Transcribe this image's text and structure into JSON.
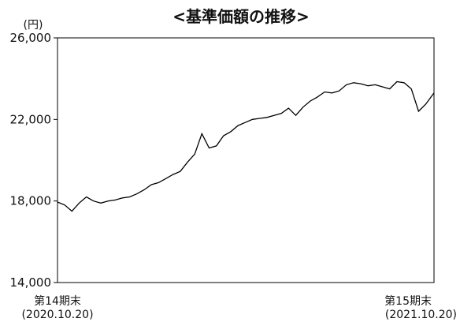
{
  "chart_data": {
    "type": "line",
    "title": "<基準価額の推移>",
    "ylabel": "(円)",
    "xlabel": "",
    "ylim": [
      14000,
      26000
    ],
    "yticks": [
      "26,000",
      "22,000",
      "18,000",
      "14,000"
    ],
    "ytick_values": [
      26000,
      22000,
      18000,
      14000
    ],
    "x_start": {
      "line1": "第14期末",
      "line2": "(2020.10.20)"
    },
    "x_end": {
      "line1": "第15期末",
      "line2": "(2021.10.20)"
    },
    "x": [
      "2020-10-20",
      "2020-10-27",
      "2020-11-03",
      "2020-11-10",
      "2020-11-17",
      "2020-11-24",
      "2020-12-01",
      "2020-12-08",
      "2020-12-15",
      "2020-12-22",
      "2020-12-29",
      "2021-01-05",
      "2021-01-12",
      "2021-01-19",
      "2021-01-26",
      "2021-02-02",
      "2021-02-09",
      "2021-02-16",
      "2021-02-23",
      "2021-03-02",
      "2021-03-09",
      "2021-03-16",
      "2021-03-23",
      "2021-03-30",
      "2021-04-06",
      "2021-04-13",
      "2021-04-20",
      "2021-04-27",
      "2021-05-04",
      "2021-05-11",
      "2021-05-18",
      "2021-05-25",
      "2021-06-01",
      "2021-06-08",
      "2021-06-15",
      "2021-06-22",
      "2021-06-29",
      "2021-07-06",
      "2021-07-13",
      "2021-07-20",
      "2021-07-27",
      "2021-08-03",
      "2021-08-10",
      "2021-08-17",
      "2021-08-24",
      "2021-08-31",
      "2021-09-07",
      "2021-09-14",
      "2021-09-21",
      "2021-09-28",
      "2021-10-05",
      "2021-10-12",
      "2021-10-20"
    ],
    "values": [
      17950,
      17800,
      17500,
      17900,
      18200,
      18000,
      17900,
      18000,
      18050,
      18150,
      18200,
      18350,
      18550,
      18800,
      18900,
      19100,
      19300,
      19450,
      19900,
      20300,
      21300,
      20600,
      20700,
      21200,
      21400,
      21700,
      21850,
      22000,
      22050,
      22100,
      22200,
      22300,
      22550,
      22200,
      22600,
      22900,
      23100,
      23350,
      23300,
      23400,
      23700,
      23800,
      23750,
      23650,
      23700,
      23600,
      23500,
      23850,
      23800,
      23500,
      22400,
      22750,
      23300
    ],
    "grid": false,
    "line_color": "#000000"
  }
}
